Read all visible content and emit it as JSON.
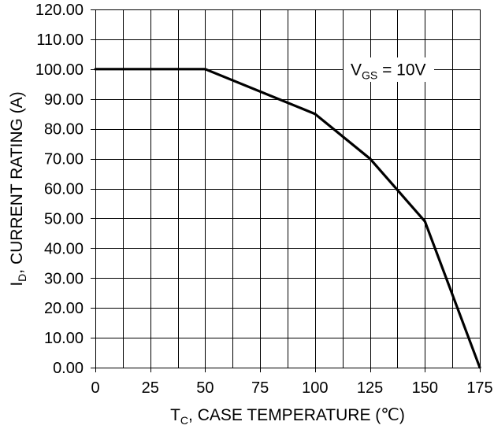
{
  "chart_data": {
    "type": "line",
    "title": "",
    "x": [
      0,
      50,
      100,
      125,
      150,
      175
    ],
    "series": [
      {
        "values": [
          100,
          100,
          85,
          70,
          49,
          0
        ],
        "color": "#000000"
      }
    ],
    "xlim": [
      0,
      175
    ],
    "ylim": [
      0,
      120
    ],
    "xticks": [
      "0",
      "25",
      "50",
      "75",
      "100",
      "125",
      "150",
      "175"
    ],
    "yticks": [
      "0.00",
      "10.00",
      "20.00",
      "30.00",
      "40.00",
      "50.00",
      "60.00",
      "70.00",
      "80.00",
      "90.00",
      "100.00",
      "110.00",
      "120.00"
    ],
    "xlabel": {
      "symbol": "T",
      "subscript": "C",
      "text": ", CASE TEMPERATURE (℃)"
    },
    "ylabel": {
      "symbol": "I",
      "subscript": "D",
      "text": ", CURRENT RATING (A)"
    },
    "annotation": {
      "symbol": "V",
      "subscript": "GS",
      "text": " = 10V"
    },
    "grid": true,
    "grid_color": "#000000",
    "background": "#ffffff"
  }
}
